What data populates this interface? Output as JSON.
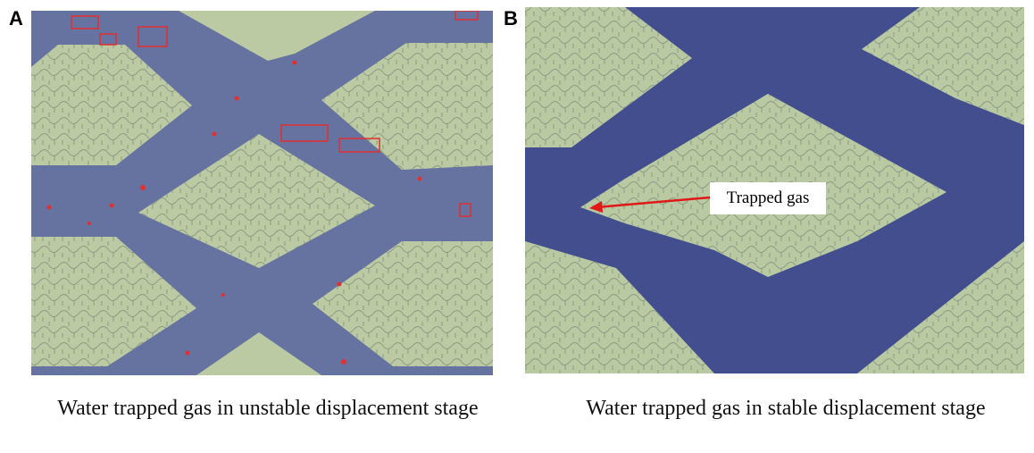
{
  "panels": [
    {
      "label": "A",
      "caption": "Water trapped gas in unstable displacement stage"
    },
    {
      "label": "B",
      "caption": "Water trapped gas in stable displacement stage",
      "annotation": "Trapped gas"
    }
  ]
}
